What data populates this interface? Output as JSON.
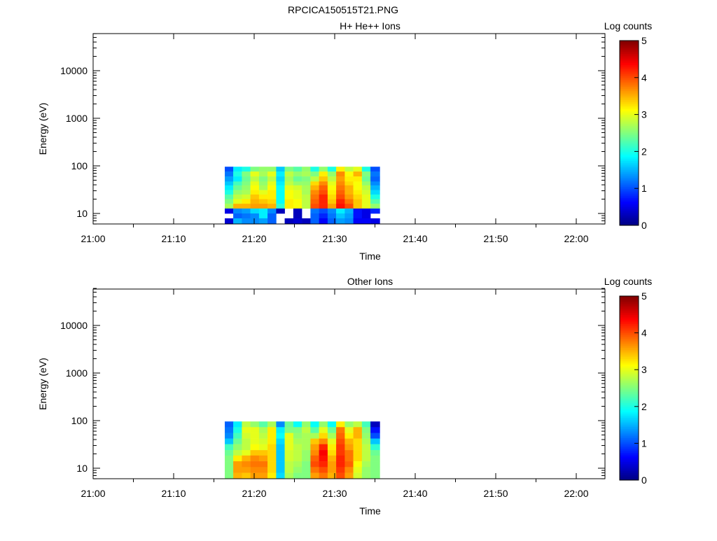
{
  "title": "RPCICA150515T21.PNG",
  "chart_data": [
    {
      "type": "heatmap",
      "title": "H+ He++ Ions",
      "xlabel": "Time",
      "ylabel": "Energy (eV)",
      "colorbar_label": "Log counts",
      "colorbar_range": [
        0,
        5
      ],
      "colorbar_ticks": [
        "0",
        "1",
        "2",
        "3",
        "4",
        "5"
      ],
      "colormap": "jet",
      "x_start": "21:00",
      "xlim_minutes": [
        0,
        63.6
      ],
      "x_ticks": [
        {
          "min": 0,
          "label": "21:00"
        },
        {
          "min": 10,
          "label": "21:10"
        },
        {
          "min": 20,
          "label": "21:20"
        },
        {
          "min": 30,
          "label": "21:30"
        },
        {
          "min": 40,
          "label": "21:40"
        },
        {
          "min": 50,
          "label": "21:50"
        },
        {
          "min": 60,
          "label": "22:00"
        }
      ],
      "yscale": "log",
      "ylim": [
        6,
        60000
      ],
      "y_ticks": [
        {
          "v": 10,
          "label": "10"
        },
        {
          "v": 100,
          "label": "100"
        },
        {
          "v": 1000,
          "label": "1000"
        },
        {
          "v": 10000,
          "label": "10000"
        }
      ],
      "time_edges_min": [
        16.35,
        17.4,
        18.47,
        19.53,
        20.6,
        21.66,
        22.73,
        23.79,
        24.86,
        25.92,
        26.99,
        28.05,
        29.12,
        30.18,
        31.25,
        32.31,
        33.38,
        34.44,
        35.6
      ],
      "energy_edges_ev": [
        96,
        76,
        60,
        47,
        39,
        31,
        25,
        20,
        16,
        12.7,
        10,
        7.9,
        6
      ],
      "values": [
        [
          1.0,
          1.8,
          2.0,
          2.5,
          2.6,
          2.6,
          1.6,
          2.5,
          2.3,
          2.6,
          2.0,
          2.6,
          2.0,
          3.2,
          2.8,
          3.0,
          2.0,
          1.0
        ],
        [
          1.2,
          2.0,
          2.5,
          3.0,
          2.7,
          3.0,
          1.8,
          2.8,
          2.6,
          2.7,
          2.5,
          3.2,
          2.6,
          3.7,
          3.1,
          3.5,
          2.5,
          1.2
        ],
        [
          1.4,
          1.8,
          2.4,
          2.8,
          2.5,
          2.8,
          1.7,
          2.7,
          2.4,
          2.5,
          2.8,
          3.4,
          2.8,
          3.6,
          3.2,
          3.2,
          2.4,
          1.1
        ],
        [
          1.6,
          2.2,
          2.5,
          3.0,
          2.6,
          3.0,
          1.8,
          2.8,
          2.6,
          2.6,
          3.3,
          3.7,
          3.0,
          3.7,
          3.3,
          3.1,
          2.6,
          1.3
        ],
        [
          1.8,
          2.4,
          2.6,
          3.1,
          2.7,
          3.1,
          1.9,
          3.0,
          2.9,
          2.7,
          3.5,
          3.9,
          3.1,
          3.8,
          3.5,
          3.1,
          2.8,
          1.5
        ],
        [
          2.0,
          2.6,
          2.7,
          3.2,
          3.0,
          3.2,
          1.9,
          3.1,
          3.0,
          2.7,
          3.7,
          4.0,
          3.2,
          3.9,
          3.5,
          3.2,
          2.9,
          1.7
        ],
        [
          2.3,
          2.8,
          2.9,
          3.4,
          3.2,
          3.2,
          1.9,
          3.1,
          3.0,
          2.8,
          3.8,
          4.2,
          3.3,
          4.0,
          3.6,
          3.3,
          3.0,
          2.0
        ],
        [
          2.5,
          3.0,
          3.2,
          3.5,
          3.4,
          3.3,
          1.9,
          3.2,
          3.1,
          2.8,
          3.9,
          4.2,
          3.4,
          4.2,
          3.8,
          3.4,
          3.0,
          2.3
        ],
        [
          2.7,
          3.5,
          3.5,
          3.6,
          3.6,
          3.5,
          2.1,
          3.2,
          3.1,
          2.8,
          4.0,
          4.2,
          3.6,
          4.3,
          4.0,
          3.4,
          3.0,
          2.6
        ],
        [
          0.5,
          1.3,
          1.4,
          1.7,
          1.8,
          1.3,
          0.3,
          null,
          0.3,
          null,
          1.2,
          1.0,
          1.3,
          1.8,
          1.5,
          0.7,
          0.5,
          0.8
        ],
        [
          null,
          1.1,
          1.2,
          1.3,
          1.8,
          1.1,
          null,
          null,
          0.3,
          null,
          1.1,
          0.8,
          1.2,
          1.6,
          1.4,
          0.7,
          0.5,
          null
        ],
        [
          0.4,
          1.5,
          1.3,
          1.3,
          1.4,
          1.1,
          null,
          0.3,
          0.4,
          0.3,
          1.1,
          0.6,
          1.1,
          1.4,
          1.3,
          0.6,
          0.6,
          0.5
        ]
      ]
    },
    {
      "type": "heatmap",
      "title": "Other Ions",
      "xlabel": "Time",
      "ylabel": "Energy (eV)",
      "colorbar_label": "Log counts",
      "colorbar_range": [
        0,
        5
      ],
      "colorbar_ticks": [
        "0",
        "1",
        "2",
        "3",
        "4",
        "5"
      ],
      "colormap": "jet",
      "x_start": "21:00",
      "xlim_minutes": [
        0,
        63.6
      ],
      "x_ticks": [
        {
          "min": 0,
          "label": "21:00"
        },
        {
          "min": 10,
          "label": "21:10"
        },
        {
          "min": 20,
          "label": "21:20"
        },
        {
          "min": 30,
          "label": "21:30"
        },
        {
          "min": 40,
          "label": "21:40"
        },
        {
          "min": 50,
          "label": "21:50"
        },
        {
          "min": 60,
          "label": "22:00"
        }
      ],
      "yscale": "log",
      "ylim": [
        6,
        60000
      ],
      "y_ticks": [
        {
          "v": 10,
          "label": "10"
        },
        {
          "v": 100,
          "label": "100"
        },
        {
          "v": 1000,
          "label": "1000"
        },
        {
          "v": 10000,
          "label": "10000"
        }
      ],
      "time_edges_min": [
        16.35,
        17.4,
        18.47,
        19.53,
        20.6,
        21.66,
        22.73,
        23.79,
        24.86,
        25.92,
        26.99,
        28.05,
        29.12,
        30.18,
        31.25,
        32.31,
        33.38,
        34.44,
        35.6
      ],
      "energy_edges_ev": [
        96,
        73,
        55,
        42,
        32,
        24,
        18.5,
        14,
        10.6,
        8.0,
        6.0
      ],
      "values": [
        [
          1.1,
          1.8,
          2.8,
          2.6,
          2.3,
          2.7,
          1.3,
          2.4,
          1.9,
          2.6,
          1.9,
          2.6,
          1.9,
          3.2,
          2.6,
          2.8,
          2.2,
          0.3
        ],
        [
          1.2,
          2.0,
          3.0,
          3.0,
          2.7,
          3.2,
          1.8,
          2.5,
          2.5,
          2.8,
          2.3,
          3.0,
          2.4,
          3.8,
          3.0,
          3.5,
          2.5,
          0.7
        ],
        [
          1.3,
          2.2,
          2.9,
          3.0,
          2.8,
          3.2,
          1.9,
          3.0,
          2.6,
          2.7,
          2.7,
          3.3,
          2.7,
          3.9,
          3.2,
          3.5,
          2.6,
          1.0
        ],
        [
          1.6,
          2.4,
          2.8,
          3.0,
          2.9,
          3.2,
          1.7,
          3.0,
          2.7,
          2.7,
          3.4,
          3.7,
          3.0,
          4.0,
          3.5,
          3.3,
          2.7,
          1.6
        ],
        [
          2.2,
          2.6,
          2.8,
          3.1,
          3.0,
          3.3,
          1.6,
          3.0,
          2.8,
          2.7,
          3.6,
          4.2,
          3.2,
          4.1,
          3.6,
          3.3,
          2.8,
          2.1
        ],
        [
          2.4,
          2.8,
          3.0,
          3.4,
          3.4,
          3.3,
          1.6,
          2.9,
          2.8,
          2.6,
          3.7,
          4.4,
          3.3,
          4.1,
          3.8,
          3.3,
          2.8,
          2.4
        ],
        [
          2.5,
          3.2,
          3.5,
          3.7,
          3.6,
          3.3,
          1.6,
          2.9,
          2.8,
          2.6,
          3.9,
          4.3,
          3.5,
          4.2,
          3.8,
          3.3,
          2.8,
          2.5
        ],
        [
          2.5,
          3.6,
          3.7,
          3.8,
          3.8,
          3.3,
          1.6,
          2.8,
          2.7,
          2.5,
          4.0,
          4.2,
          3.6,
          4.2,
          3.9,
          3.1,
          2.7,
          2.5
        ],
        [
          2.5,
          3.6,
          3.6,
          3.7,
          3.7,
          3.3,
          1.6,
          2.8,
          2.6,
          2.5,
          3.8,
          4.0,
          3.6,
          4.1,
          3.7,
          3.0,
          2.6,
          2.5
        ],
        [
          2.5,
          3.5,
          3.4,
          3.6,
          3.6,
          3.2,
          1.7,
          2.7,
          2.5,
          2.5,
          3.6,
          3.8,
          3.5,
          4.0,
          3.6,
          2.9,
          2.6,
          2.5
        ]
      ]
    }
  ]
}
